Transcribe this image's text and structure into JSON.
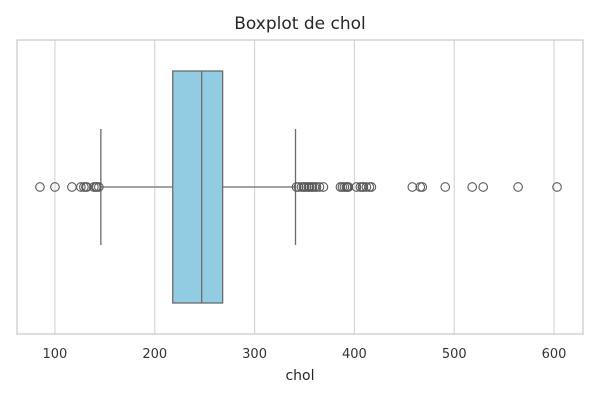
{
  "chart_data": {
    "type": "boxplot",
    "orientation": "horizontal",
    "title": "Boxplot de chol",
    "xlabel": "chol",
    "ylabel": "",
    "xlim": [
      62,
      629
    ],
    "xticks": [
      100,
      200,
      300,
      400,
      500,
      600
    ],
    "xtick_labels": [
      "100",
      "200",
      "300",
      "400",
      "500",
      "600"
    ],
    "grid": "vertical",
    "box": {
      "q1": 218,
      "median": 247,
      "q3": 268,
      "whisker_low": 146,
      "whisker_high": 341
    },
    "outliers": [
      85,
      100,
      117,
      126,
      129,
      131,
      132,
      139,
      141,
      142,
      144,
      342,
      344,
      347,
      349,
      350,
      352,
      354,
      355,
      357,
      358,
      360,
      362,
      365,
      369,
      386,
      388,
      390,
      392,
      393,
      394,
      402,
      406,
      408,
      409,
      412,
      415,
      417,
      458,
      466,
      468,
      491,
      518,
      529,
      564,
      603
    ],
    "colors": {
      "box_fill": "#92CCE3",
      "box_edge": "#6b6b6b",
      "grid": "#d6d6d6",
      "frame": "#c8c8c8",
      "outlier_edge": "#5a5a5a"
    }
  }
}
